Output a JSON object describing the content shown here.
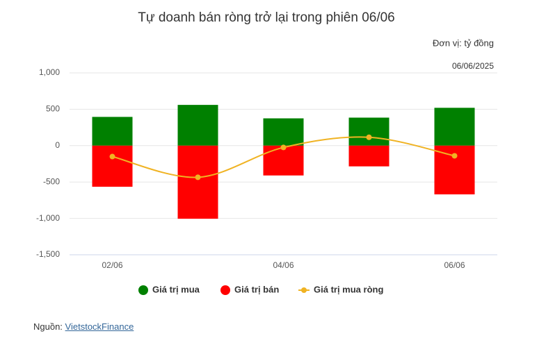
{
  "chart_data": {
    "type": "bar-line",
    "title": "Tự doanh bán ròng trở lại trong phiên 06/06",
    "unit": "Đơn vị: tỷ đồng",
    "date": "06/06/2025",
    "categories": [
      "02/06",
      null,
      "04/06",
      null,
      "06/06"
    ],
    "series": [
      {
        "name": "Giá trị mua",
        "color": "#008000",
        "kind": "bar",
        "values": [
          395,
          560,
          375,
          385,
          520
        ]
      },
      {
        "name": "Giá trị bán",
        "color": "#ff0000",
        "kind": "bar",
        "values": [
          -565,
          -1005,
          -410,
          -285,
          -670
        ]
      },
      {
        "name": "Giá trị mua ròng",
        "color": "#f0b323",
        "kind": "line",
        "values": [
          -150,
          -435,
          -25,
          115,
          -140
        ]
      }
    ],
    "ylim": [
      -1500,
      1000
    ],
    "yticks": [
      {
        "value": -1500,
        "label": "-1,500"
      },
      {
        "value": -1000,
        "label": "-1,000"
      },
      -500,
      0,
      500,
      {
        "value": 1000,
        "label": "1,000"
      }
    ],
    "grid": true,
    "legend": "bottom"
  },
  "source": {
    "label": "Nguồn:",
    "link": "VietstockFinance"
  }
}
